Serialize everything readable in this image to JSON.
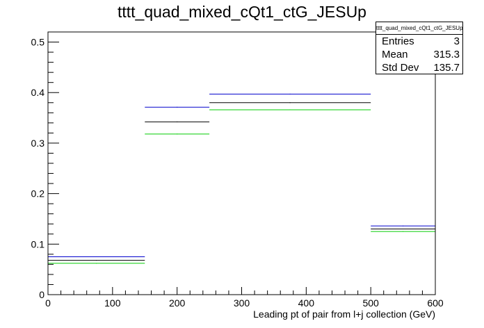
{
  "title": "tttt_quad_mixed_cQt1_ctG_JESUp",
  "stats": {
    "name": "tttt_quad_mixed_cQt1_ctG_JESUp",
    "rows": [
      {
        "label": "Entries",
        "value": "3"
      },
      {
        "label": "Mean",
        "value": "315.3"
      },
      {
        "label": "Std Dev",
        "value": "135.7"
      }
    ]
  },
  "chart_data": {
    "type": "histogram",
    "title": "tttt_quad_mixed_cQt1_ctG_JESUp",
    "xlabel": "Leading pt of pair from l+j collection (GeV)",
    "ylabel": "",
    "xlim": [
      0,
      600
    ],
    "ylim": [
      0,
      0.52
    ],
    "bin_edges": [
      0,
      150,
      250,
      500,
      600
    ],
    "x_ticks": [
      0,
      100,
      200,
      300,
      400,
      500,
      600
    ],
    "y_ticks": [
      0,
      0.1,
      0.2,
      0.3,
      0.4,
      0.5
    ],
    "x_tick_labels": [
      "0",
      "100",
      "200",
      "300",
      "400",
      "500",
      "600"
    ],
    "y_tick_labels": [
      "0",
      "0.1",
      "0.2",
      "0.3",
      "0.4",
      "0.5"
    ],
    "grid": false,
    "series": [
      {
        "color": "#0000cc",
        "values": [
          0.075,
          0.371,
          0.397,
          0.136
        ]
      },
      {
        "color": "#000000",
        "values": [
          0.068,
          0.342,
          0.38,
          0.13
        ]
      },
      {
        "color": "#00cc00",
        "values": [
          0.062,
          0.318,
          0.366,
          0.125
        ]
      }
    ]
  }
}
